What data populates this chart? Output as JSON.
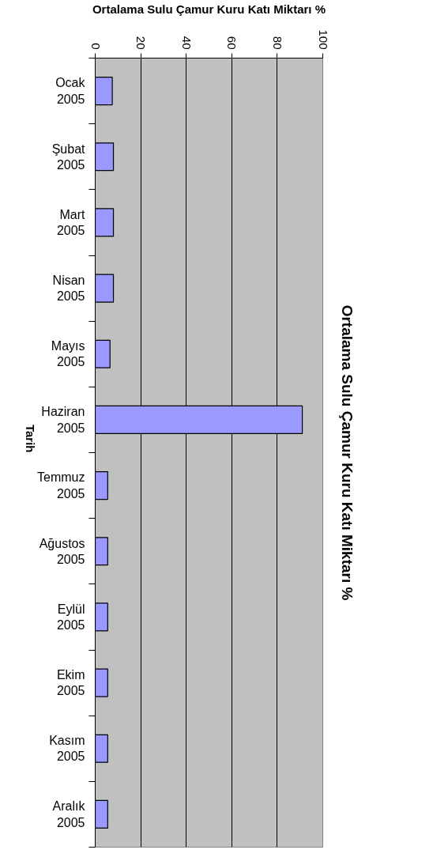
{
  "chart_data": {
    "type": "bar",
    "orientation": "horizontal",
    "title": "Ortalama Sulu Çamur Kuru Katı Miktarı %",
    "xlabel": "Ortalama Sulu Çamur Kuru Katı Miktarı %",
    "ylabel": "Tarih",
    "categories": [
      "Ocak 2005",
      "Şubat 2005",
      "Mart 2005",
      "Nisan 2005",
      "Mayıs 2005",
      "Haziran 2005",
      "Temmuz 2005",
      "Ağustos 2005",
      "Eylül 2005",
      "Ekim 2005",
      "Kasım 2005",
      "Aralık 2005"
    ],
    "values": [
      7.5,
      8,
      8,
      8,
      6.5,
      91,
      5.5,
      5.5,
      5.5,
      5.5,
      5.5,
      5.5
    ],
    "color": "#9999ff",
    "xlim": [
      0,
      100
    ],
    "xticks": [
      0,
      20,
      40,
      60,
      80,
      100
    ],
    "grid": "x"
  }
}
